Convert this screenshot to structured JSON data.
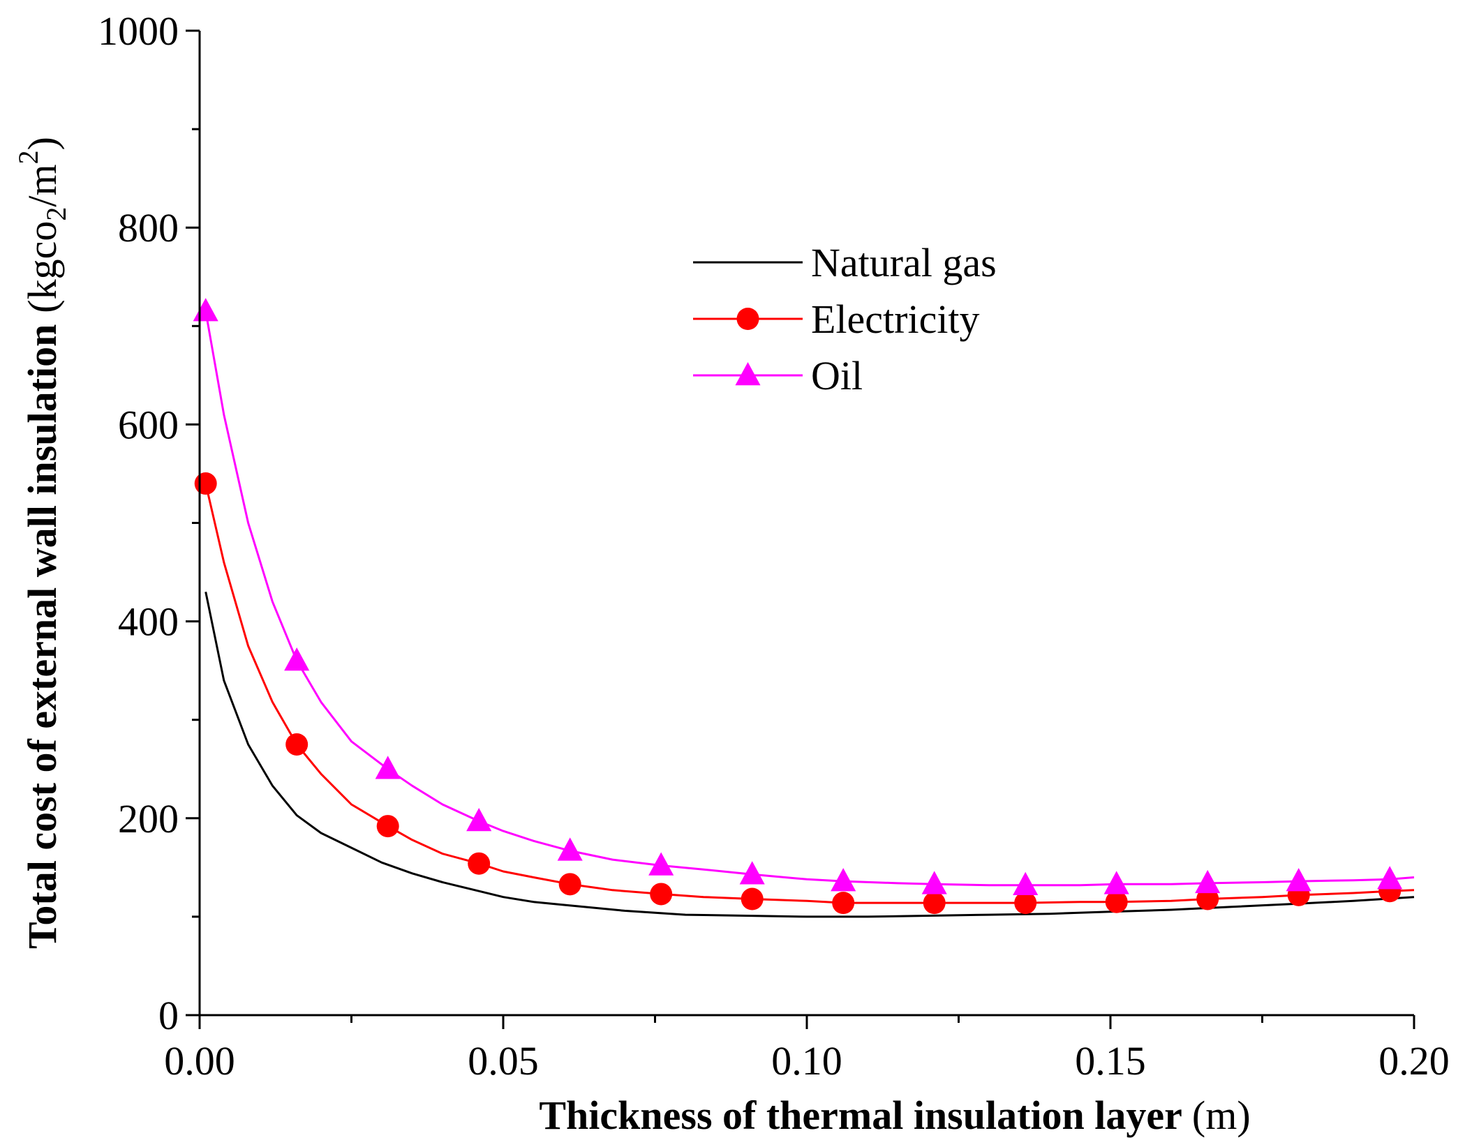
{
  "chart_data": {
    "type": "line",
    "title": "",
    "xlabel": "Thickness of thermal insulation layer",
    "xlabel_unit": "(m)",
    "ylabel": "Total cost of  external wall insulation",
    "ylabel_unit": {
      "open": "(kgco",
      "sub": "2",
      "mid": "/m",
      "sup": "2",
      "close": ")"
    },
    "xlim": [
      0,
      0.2
    ],
    "ylim": [
      0,
      1000
    ],
    "xticks": [
      "0.00",
      "0.05",
      "0.10",
      "0.15",
      "0.20"
    ],
    "xtick_values": [
      0,
      0.05,
      0.1,
      0.15,
      0.2
    ],
    "yticks": [
      "0",
      "200",
      "400",
      "600",
      "800",
      "1000"
    ],
    "ytick_values": [
      0,
      200,
      400,
      600,
      800,
      1000
    ],
    "grid": false,
    "legend_position": "upper-middle",
    "series": [
      {
        "name": "Natural gas",
        "color": "#000000",
        "marker": "none",
        "x": [
          0.001,
          0.004,
          0.008,
          0.012,
          0.016,
          0.02,
          0.025,
          0.03,
          0.035,
          0.04,
          0.046,
          0.05,
          0.055,
          0.06,
          0.07,
          0.08,
          0.09,
          0.1,
          0.11,
          0.12,
          0.13,
          0.14,
          0.15,
          0.16,
          0.17,
          0.18,
          0.19,
          0.2
        ],
        "y": [
          430,
          340,
          275,
          233,
          203,
          185,
          170,
          155,
          144,
          135,
          126,
          120,
          115,
          112,
          106,
          102,
          101,
          100,
          100,
          101,
          102,
          103,
          105,
          107,
          110,
          113,
          116,
          120
        ]
      },
      {
        "name": "Electricity",
        "color": "#ff0000",
        "marker": "circle",
        "x": [
          0.001,
          0.004,
          0.008,
          0.012,
          0.016,
          0.02,
          0.025,
          0.031,
          0.035,
          0.04,
          0.046,
          0.05,
          0.055,
          0.061,
          0.068,
          0.076,
          0.083,
          0.091,
          0.1,
          0.106,
          0.115,
          0.121,
          0.13,
          0.136,
          0.145,
          0.151,
          0.16,
          0.166,
          0.175,
          0.181,
          0.19,
          0.196,
          0.2
        ],
        "y": [
          540,
          460,
          375,
          318,
          275,
          245,
          214,
          192,
          178,
          164,
          154,
          146,
          140,
          133,
          127,
          123,
          120,
          118,
          116,
          114,
          114,
          114,
          114,
          114,
          115,
          115,
          116,
          118,
          120,
          122,
          124,
          126,
          127
        ],
        "marker_x": [
          0.001,
          0.016,
          0.031,
          0.046,
          0.061,
          0.076,
          0.091,
          0.106,
          0.121,
          0.136,
          0.151,
          0.166,
          0.181,
          0.196
        ],
        "marker_y": [
          540,
          275,
          192,
          154,
          133,
          123,
          118,
          114,
          114,
          114,
          115,
          118,
          122,
          126
        ]
      },
      {
        "name": "Oil",
        "color": "#ff00ff",
        "marker": "triangle",
        "x": [
          0.001,
          0.004,
          0.008,
          0.012,
          0.016,
          0.02,
          0.025,
          0.031,
          0.035,
          0.04,
          0.046,
          0.05,
          0.055,
          0.061,
          0.068,
          0.076,
          0.083,
          0.091,
          0.1,
          0.106,
          0.115,
          0.121,
          0.13,
          0.136,
          0.145,
          0.151,
          0.16,
          0.166,
          0.175,
          0.181,
          0.19,
          0.196,
          0.2
        ],
        "y": [
          715,
          610,
          500,
          420,
          360,
          318,
          278,
          250,
          233,
          214,
          197,
          187,
          177,
          167,
          158,
          152,
          148,
          143,
          138,
          136,
          134,
          133,
          132,
          132,
          132,
          133,
          133,
          134,
          135,
          136,
          137,
          138,
          140
        ],
        "marker_x": [
          0.001,
          0.016,
          0.031,
          0.046,
          0.061,
          0.076,
          0.091,
          0.106,
          0.121,
          0.136,
          0.151,
          0.166,
          0.181,
          0.196
        ],
        "marker_y": [
          715,
          360,
          250,
          197,
          167,
          152,
          143,
          136,
          133,
          132,
          133,
          134,
          136,
          138
        ]
      }
    ]
  }
}
